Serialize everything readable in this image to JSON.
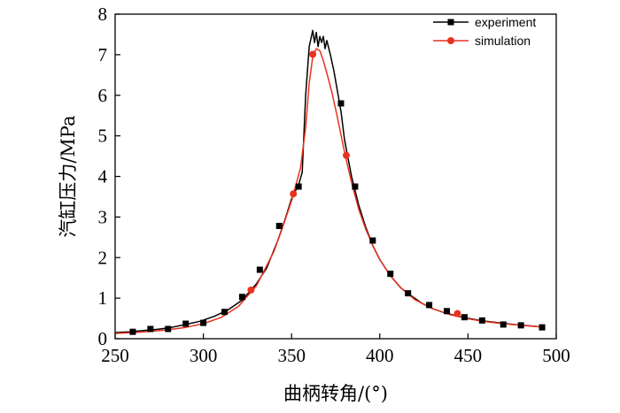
{
  "chart_data": {
    "type": "line",
    "xlabel": "曲柄转角/(°)",
    "ylabel": "汽缸压力/MPa",
    "xlim": [
      250,
      500
    ],
    "ylim": [
      0,
      8
    ],
    "x_ticks": [
      250,
      300,
      350,
      400,
      450,
      500
    ],
    "y_ticks": [
      0,
      1,
      2,
      3,
      4,
      5,
      6,
      7,
      8
    ],
    "legend_position": "top-right",
    "series": [
      {
        "name": "experiment",
        "color": "#000000",
        "marker": "square",
        "x": [
          250,
          258,
          266,
          274,
          282,
          290,
          298,
          306,
          314,
          322,
          330,
          336,
          342,
          346,
          350,
          354,
          356,
          358,
          360,
          362,
          363,
          364,
          365,
          366,
          367,
          368,
          369,
          370,
          372,
          374,
          376,
          378,
          380,
          384,
          388,
          392,
          396,
          400,
          406,
          412,
          418,
          424,
          430,
          436,
          442,
          448,
          454,
          460,
          466,
          472,
          478,
          484,
          492
        ],
        "y": [
          0.15,
          0.17,
          0.2,
          0.23,
          0.28,
          0.35,
          0.43,
          0.55,
          0.71,
          0.95,
          1.35,
          1.75,
          2.4,
          2.9,
          3.45,
          3.8,
          4.1,
          6.0,
          7.2,
          7.6,
          7.3,
          7.55,
          7.2,
          7.45,
          7.3,
          7.45,
          7.15,
          7.35,
          7.0,
          6.6,
          6.1,
          5.6,
          4.9,
          4.0,
          3.3,
          2.75,
          2.3,
          1.95,
          1.55,
          1.25,
          1.05,
          0.87,
          0.74,
          0.65,
          0.58,
          0.52,
          0.47,
          0.43,
          0.4,
          0.37,
          0.34,
          0.32,
          0.29
        ],
        "marker_x": [
          260,
          270,
          280,
          290,
          300,
          312,
          322,
          332,
          343,
          354,
          378,
          386,
          396,
          406,
          416,
          428,
          438,
          448,
          458,
          470,
          480,
          492
        ],
        "marker_y": [
          0.17,
          0.24,
          0.24,
          0.37,
          0.39,
          0.66,
          1.03,
          1.7,
          2.78,
          3.75,
          5.8,
          3.75,
          2.42,
          1.6,
          1.12,
          0.83,
          0.68,
          0.53,
          0.45,
          0.35,
          0.33,
          0.28
        ]
      },
      {
        "name": "simulation",
        "color": "#e8321e",
        "marker": "circle",
        "x": [
          250,
          260,
          270,
          280,
          290,
          300,
          310,
          320,
          330,
          340,
          345,
          350,
          355,
          358,
          360,
          362,
          364,
          366,
          368,
          370,
          373,
          376,
          380,
          384,
          388,
          392,
          396,
          400,
          406,
          412,
          420,
          430,
          440,
          450,
          460,
          470,
          480,
          492
        ],
        "y": [
          0.13,
          0.15,
          0.18,
          0.22,
          0.28,
          0.37,
          0.52,
          0.8,
          1.3,
          2.15,
          2.75,
          3.4,
          4.2,
          5.2,
          6.3,
          6.95,
          7.15,
          7.1,
          6.85,
          6.55,
          6.05,
          5.45,
          4.6,
          3.85,
          3.2,
          2.7,
          2.3,
          1.95,
          1.55,
          1.25,
          0.96,
          0.74,
          0.59,
          0.49,
          0.42,
          0.37,
          0.33,
          0.29
        ],
        "marker_x": [
          327,
          351,
          362,
          381,
          444
        ],
        "marker_y": [
          1.2,
          3.57,
          7.01,
          4.52,
          0.62
        ]
      }
    ]
  }
}
